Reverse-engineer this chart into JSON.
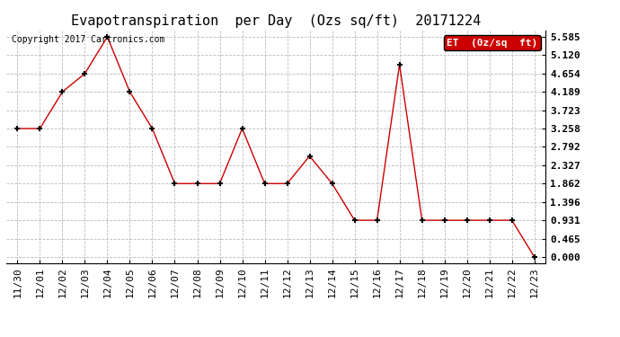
{
  "title": "Evapotranspiration  per Day  (Ozs sq/ft)  20171224",
  "copyright": "Copyright 2017 Cartronics.com",
  "legend_label": "ET  (0z/sq  ft)",
  "x_labels": [
    "11/30",
    "12/01",
    "12/02",
    "12/03",
    "12/04",
    "12/05",
    "12/06",
    "12/07",
    "12/08",
    "12/09",
    "12/10",
    "12/11",
    "12/12",
    "12/13",
    "12/14",
    "12/15",
    "12/16",
    "12/17",
    "12/18",
    "12/19",
    "12/20",
    "12/21",
    "12/22",
    "12/23"
  ],
  "y_values": [
    3.258,
    3.258,
    4.189,
    4.654,
    5.585,
    4.189,
    3.258,
    1.862,
    1.862,
    1.862,
    3.258,
    1.862,
    1.862,
    2.56,
    1.862,
    0.931,
    0.931,
    4.885,
    0.931,
    0.931,
    0.931,
    0.931,
    0.931,
    0.0
  ],
  "y_ticks": [
    0.0,
    0.465,
    0.931,
    1.396,
    1.862,
    2.327,
    2.792,
    3.258,
    3.723,
    4.189,
    4.654,
    5.12,
    5.585
  ],
  "ylim": [
    0.0,
    5.585
  ],
  "line_color": "#cc0000",
  "marker_color": "#000000",
  "bg_color": "#ffffff",
  "grid_color": "#bbbbbb",
  "legend_bg": "#cc0000",
  "legend_text_color": "#ffffff",
  "title_fontsize": 11,
  "tick_fontsize": 8,
  "copyright_fontsize": 7
}
